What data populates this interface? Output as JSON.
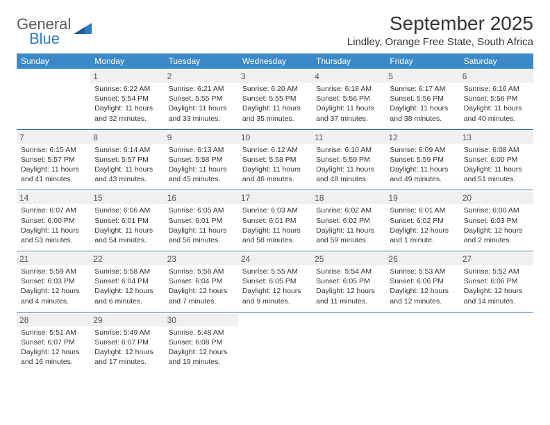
{
  "brand": {
    "word1": "General",
    "word2": "Blue"
  },
  "title": "September 2025",
  "location": "Lindley, Orange Free State, South Africa",
  "dow": [
    "Sunday",
    "Monday",
    "Tuesday",
    "Wednesday",
    "Thursday",
    "Friday",
    "Saturday"
  ],
  "colors": {
    "header_bg": "#3b89c9",
    "header_text": "#ffffff",
    "daynum_bg": "#eef0f2",
    "rule": "#2f6fa8",
    "logo_gray": "#5a5a5a",
    "logo_blue": "#2f7bbf"
  },
  "weeks": [
    [
      {
        "n": "",
        "lines": []
      },
      {
        "n": "1",
        "lines": [
          "Sunrise: 6:22 AM",
          "Sunset: 5:54 PM",
          "Daylight: 11 hours",
          "and 32 minutes."
        ]
      },
      {
        "n": "2",
        "lines": [
          "Sunrise: 6:21 AM",
          "Sunset: 5:55 PM",
          "Daylight: 11 hours",
          "and 33 minutes."
        ]
      },
      {
        "n": "3",
        "lines": [
          "Sunrise: 6:20 AM",
          "Sunset: 5:55 PM",
          "Daylight: 11 hours",
          "and 35 minutes."
        ]
      },
      {
        "n": "4",
        "lines": [
          "Sunrise: 6:18 AM",
          "Sunset: 5:56 PM",
          "Daylight: 11 hours",
          "and 37 minutes."
        ]
      },
      {
        "n": "5",
        "lines": [
          "Sunrise: 6:17 AM",
          "Sunset: 5:56 PM",
          "Daylight: 11 hours",
          "and 38 minutes."
        ]
      },
      {
        "n": "6",
        "lines": [
          "Sunrise: 6:16 AM",
          "Sunset: 5:56 PM",
          "Daylight: 11 hours",
          "and 40 minutes."
        ]
      }
    ],
    [
      {
        "n": "7",
        "lines": [
          "Sunrise: 6:15 AM",
          "Sunset: 5:57 PM",
          "Daylight: 11 hours",
          "and 41 minutes."
        ]
      },
      {
        "n": "8",
        "lines": [
          "Sunrise: 6:14 AM",
          "Sunset: 5:57 PM",
          "Daylight: 11 hours",
          "and 43 minutes."
        ]
      },
      {
        "n": "9",
        "lines": [
          "Sunrise: 6:13 AM",
          "Sunset: 5:58 PM",
          "Daylight: 11 hours",
          "and 45 minutes."
        ]
      },
      {
        "n": "10",
        "lines": [
          "Sunrise: 6:12 AM",
          "Sunset: 5:58 PM",
          "Daylight: 11 hours",
          "and 46 minutes."
        ]
      },
      {
        "n": "11",
        "lines": [
          "Sunrise: 6:10 AM",
          "Sunset: 5:59 PM",
          "Daylight: 11 hours",
          "and 48 minutes."
        ]
      },
      {
        "n": "12",
        "lines": [
          "Sunrise: 6:09 AM",
          "Sunset: 5:59 PM",
          "Daylight: 11 hours",
          "and 49 minutes."
        ]
      },
      {
        "n": "13",
        "lines": [
          "Sunrise: 6:08 AM",
          "Sunset: 6:00 PM",
          "Daylight: 11 hours",
          "and 51 minutes."
        ]
      }
    ],
    [
      {
        "n": "14",
        "lines": [
          "Sunrise: 6:07 AM",
          "Sunset: 6:00 PM",
          "Daylight: 11 hours",
          "and 53 minutes."
        ]
      },
      {
        "n": "15",
        "lines": [
          "Sunrise: 6:06 AM",
          "Sunset: 6:01 PM",
          "Daylight: 11 hours",
          "and 54 minutes."
        ]
      },
      {
        "n": "16",
        "lines": [
          "Sunrise: 6:05 AM",
          "Sunset: 6:01 PM",
          "Daylight: 11 hours",
          "and 56 minutes."
        ]
      },
      {
        "n": "17",
        "lines": [
          "Sunrise: 6:03 AM",
          "Sunset: 6:01 PM",
          "Daylight: 11 hours",
          "and 58 minutes."
        ]
      },
      {
        "n": "18",
        "lines": [
          "Sunrise: 6:02 AM",
          "Sunset: 6:02 PM",
          "Daylight: 11 hours",
          "and 59 minutes."
        ]
      },
      {
        "n": "19",
        "lines": [
          "Sunrise: 6:01 AM",
          "Sunset: 6:02 PM",
          "Daylight: 12 hours",
          "and 1 minute."
        ]
      },
      {
        "n": "20",
        "lines": [
          "Sunrise: 6:00 AM",
          "Sunset: 6:03 PM",
          "Daylight: 12 hours",
          "and 2 minutes."
        ]
      }
    ],
    [
      {
        "n": "21",
        "lines": [
          "Sunrise: 5:59 AM",
          "Sunset: 6:03 PM",
          "Daylight: 12 hours",
          "and 4 minutes."
        ]
      },
      {
        "n": "22",
        "lines": [
          "Sunrise: 5:58 AM",
          "Sunset: 6:04 PM",
          "Daylight: 12 hours",
          "and 6 minutes."
        ]
      },
      {
        "n": "23",
        "lines": [
          "Sunrise: 5:56 AM",
          "Sunset: 6:04 PM",
          "Daylight: 12 hours",
          "and 7 minutes."
        ]
      },
      {
        "n": "24",
        "lines": [
          "Sunrise: 5:55 AM",
          "Sunset: 6:05 PM",
          "Daylight: 12 hours",
          "and 9 minutes."
        ]
      },
      {
        "n": "25",
        "lines": [
          "Sunrise: 5:54 AM",
          "Sunset: 6:05 PM",
          "Daylight: 12 hours",
          "and 11 minutes."
        ]
      },
      {
        "n": "26",
        "lines": [
          "Sunrise: 5:53 AM",
          "Sunset: 6:06 PM",
          "Daylight: 12 hours",
          "and 12 minutes."
        ]
      },
      {
        "n": "27",
        "lines": [
          "Sunrise: 5:52 AM",
          "Sunset: 6:06 PM",
          "Daylight: 12 hours",
          "and 14 minutes."
        ]
      }
    ],
    [
      {
        "n": "28",
        "lines": [
          "Sunrise: 5:51 AM",
          "Sunset: 6:07 PM",
          "Daylight: 12 hours",
          "and 16 minutes."
        ]
      },
      {
        "n": "29",
        "lines": [
          "Sunrise: 5:49 AM",
          "Sunset: 6:07 PM",
          "Daylight: 12 hours",
          "and 17 minutes."
        ]
      },
      {
        "n": "30",
        "lines": [
          "Sunrise: 5:48 AM",
          "Sunset: 6:08 PM",
          "Daylight: 12 hours",
          "and 19 minutes."
        ]
      },
      {
        "n": "",
        "lines": []
      },
      {
        "n": "",
        "lines": []
      },
      {
        "n": "",
        "lines": []
      },
      {
        "n": "",
        "lines": []
      }
    ]
  ]
}
